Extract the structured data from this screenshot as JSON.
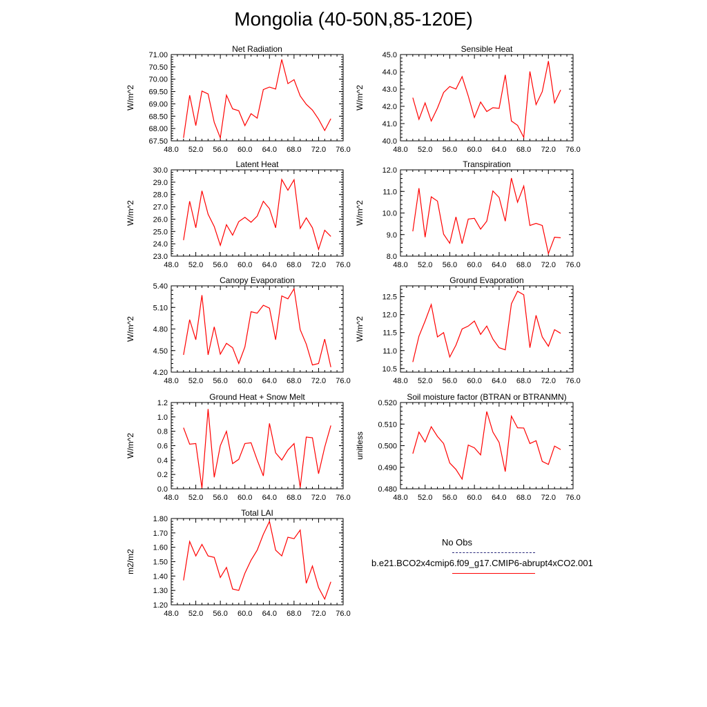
{
  "page": {
    "title": "Mongolia (40-50N,85-120E)"
  },
  "legend": {
    "obs_label": "No Obs",
    "obs_color": "#28287a",
    "model_label": "b.e21.BCO2x4cmip6.f09_g17.CMIP6-abrupt4xCO2.001",
    "model_color": "#ff0000"
  },
  "chart_data": [
    {
      "id": "net-radiation",
      "type": "line",
      "title": "Net Radiation",
      "xlabel": "",
      "ylabel": "W/m^2",
      "xlim": [
        48,
        76
      ],
      "ylim": [
        67.5,
        71.0
      ],
      "xticks": [
        "48.0",
        "52.0",
        "56.0",
        "60.0",
        "64.0",
        "68.0",
        "72.0",
        "76.0"
      ],
      "yticks": [
        "67.50",
        "68.00",
        "68.50",
        "69.00",
        "69.50",
        "70.00",
        "70.50",
        "71.00"
      ],
      "x": [
        50,
        51,
        52,
        53,
        54,
        55,
        56,
        57,
        58,
        59,
        60,
        61,
        62,
        63,
        64,
        65,
        66,
        67,
        68,
        69,
        70,
        71,
        72,
        73,
        74
      ],
      "series": [
        {
          "name": "b.e21.BCO2x4cmip6.f09_g17.CMIP6-abrupt4xCO2.001",
          "values": [
            67.62,
            69.35,
            68.12,
            69.52,
            69.4,
            68.25,
            67.62,
            69.35,
            68.8,
            68.72,
            68.12,
            68.6,
            68.42,
            69.58,
            69.68,
            69.6,
            70.8,
            69.82,
            69.98,
            69.32,
            68.98,
            68.75,
            68.38,
            67.92,
            68.4
          ]
        }
      ]
    },
    {
      "id": "sensible-heat",
      "type": "line",
      "title": "Sensible Heat",
      "xlabel": "",
      "ylabel": "W/m^2",
      "xlim": [
        48,
        76
      ],
      "ylim": [
        40.0,
        45.0
      ],
      "xticks": [
        "48.0",
        "52.0",
        "56.0",
        "60.0",
        "64.0",
        "68.0",
        "72.0",
        "76.0"
      ],
      "yticks": [
        "40.0",
        "41.0",
        "42.0",
        "43.0",
        "44.0",
        "45.0"
      ],
      "x": [
        50,
        51,
        52,
        53,
        54,
        55,
        56,
        57,
        58,
        59,
        60,
        61,
        62,
        63,
        64,
        65,
        66,
        67,
        68,
        69,
        70,
        71,
        72,
        73,
        74
      ],
      "series": [
        {
          "name": "b.e21.BCO2x4cmip6.f09_g17.CMIP6-abrupt4xCO2.001",
          "values": [
            42.5,
            41.25,
            42.2,
            41.15,
            41.9,
            42.8,
            43.15,
            43.0,
            43.72,
            42.6,
            41.35,
            42.25,
            41.7,
            41.92,
            41.88,
            43.82,
            41.15,
            40.9,
            40.2,
            44.02,
            42.1,
            42.85,
            44.62,
            42.2,
            42.95
          ]
        }
      ]
    },
    {
      "id": "latent-heat",
      "type": "line",
      "title": "Latent Heat",
      "xlabel": "",
      "ylabel": "W/m^2",
      "xlim": [
        48,
        76
      ],
      "ylim": [
        23.0,
        30.0
      ],
      "xticks": [
        "48.0",
        "52.0",
        "56.0",
        "60.0",
        "64.0",
        "68.0",
        "72.0",
        "76.0"
      ],
      "yticks": [
        "23.0",
        "24.0",
        "25.0",
        "26.0",
        "27.0",
        "28.0",
        "29.0",
        "30.0"
      ],
      "x": [
        50,
        51,
        52,
        53,
        54,
        55,
        56,
        57,
        58,
        59,
        60,
        61,
        62,
        63,
        64,
        65,
        66,
        67,
        68,
        69,
        70,
        71,
        72,
        73,
        74
      ],
      "series": [
        {
          "name": "b.e21.BCO2x4cmip6.f09_g17.CMIP6-abrupt4xCO2.001",
          "values": [
            24.3,
            27.45,
            25.3,
            28.3,
            26.4,
            25.4,
            23.88,
            25.55,
            24.7,
            25.8,
            26.15,
            25.75,
            26.25,
            27.45,
            26.85,
            25.3,
            29.22,
            28.35,
            29.2,
            25.25,
            26.1,
            25.3,
            23.55,
            25.1,
            24.6
          ]
        }
      ]
    },
    {
      "id": "transpiration",
      "type": "line",
      "title": "Transpiration",
      "xlabel": "",
      "ylabel": "W/m^2",
      "xlim": [
        48,
        76
      ],
      "ylim": [
        8.0,
        12.0
      ],
      "xticks": [
        "48.0",
        "52.0",
        "56.0",
        "60.0",
        "64.0",
        "68.0",
        "72.0",
        "76.0"
      ],
      "yticks": [
        "8.0",
        "9.0",
        "10.0",
        "11.0",
        "12.0"
      ],
      "x": [
        50,
        51,
        52,
        53,
        54,
        55,
        56,
        57,
        58,
        59,
        60,
        61,
        62,
        63,
        64,
        65,
        66,
        67,
        68,
        69,
        70,
        71,
        72,
        73,
        74
      ],
      "series": [
        {
          "name": "b.e21.BCO2x4cmip6.f09_g17.CMIP6-abrupt4xCO2.001",
          "values": [
            9.15,
            11.15,
            8.88,
            10.75,
            10.55,
            9.02,
            8.6,
            9.82,
            8.58,
            9.72,
            9.75,
            9.25,
            9.62,
            11.02,
            10.72,
            9.62,
            11.62,
            10.5,
            11.25,
            9.42,
            9.52,
            9.42,
            8.12,
            8.88,
            8.85
          ]
        }
      ]
    },
    {
      "id": "canopy-evaporation",
      "type": "line",
      "title": "Canopy Evaporation",
      "xlabel": "",
      "ylabel": "W/m^2",
      "xlim": [
        48,
        76
      ],
      "ylim": [
        4.2,
        5.4
      ],
      "xticks": [
        "48.0",
        "52.0",
        "56.0",
        "60.0",
        "64.0",
        "68.0",
        "72.0",
        "76.0"
      ],
      "yticks": [
        "4.20",
        "4.50",
        "4.80",
        "5.10",
        "5.40"
      ],
      "x": [
        50,
        51,
        52,
        53,
        54,
        55,
        56,
        57,
        58,
        59,
        60,
        61,
        62,
        63,
        64,
        65,
        66,
        67,
        68,
        69,
        70,
        71,
        72,
        73,
        74
      ],
      "series": [
        {
          "name": "b.e21.BCO2x4cmip6.f09_g17.CMIP6-abrupt4xCO2.001",
          "values": [
            4.44,
            4.93,
            4.65,
            5.27,
            4.44,
            4.83,
            4.45,
            4.6,
            4.54,
            4.32,
            4.55,
            5.04,
            5.02,
            5.13,
            5.09,
            4.65,
            5.26,
            5.22,
            5.36,
            4.79,
            4.59,
            4.3,
            4.32,
            4.66,
            4.27
          ]
        }
      ]
    },
    {
      "id": "ground-evaporation",
      "type": "line",
      "title": "Ground Evaporation",
      "xlabel": "",
      "ylabel": "W/m^2",
      "xlim": [
        48,
        76
      ],
      "ylim": [
        10.4,
        12.8
      ],
      "xticks": [
        "48.0",
        "52.0",
        "56.0",
        "60.0",
        "64.0",
        "68.0",
        "72.0",
        "76.0"
      ],
      "yticks": [
        "10.5",
        "11.0",
        "11.5",
        "12.0",
        "12.5"
      ],
      "x": [
        50,
        51,
        52,
        53,
        54,
        55,
        56,
        57,
        58,
        59,
        60,
        61,
        62,
        63,
        64,
        65,
        66,
        67,
        68,
        69,
        70,
        71,
        72,
        73,
        74
      ],
      "series": [
        {
          "name": "b.e21.BCO2x4cmip6.f09_g17.CMIP6-abrupt4xCO2.001",
          "values": [
            10.68,
            11.4,
            11.82,
            12.28,
            11.38,
            11.5,
            10.82,
            11.15,
            11.6,
            11.68,
            11.82,
            11.45,
            11.68,
            11.32,
            11.08,
            11.02,
            12.3,
            12.65,
            12.55,
            11.08,
            11.98,
            11.38,
            11.12,
            11.58,
            11.48
          ]
        }
      ]
    },
    {
      "id": "ground-heat-snow-melt",
      "type": "line",
      "title": "Ground Heat + Snow Melt",
      "xlabel": "",
      "ylabel": "W/m^2",
      "xlim": [
        48,
        76
      ],
      "ylim": [
        0.0,
        1.2
      ],
      "xticks": [
        "48.0",
        "52.0",
        "56.0",
        "60.0",
        "64.0",
        "68.0",
        "72.0",
        "76.0"
      ],
      "yticks": [
        "0.0",
        "0.2",
        "0.4",
        "0.6",
        "0.8",
        "1.0",
        "1.2"
      ],
      "x": [
        50,
        51,
        52,
        53,
        54,
        55,
        56,
        57,
        58,
        59,
        60,
        61,
        62,
        63,
        64,
        65,
        66,
        67,
        68,
        69,
        70,
        71,
        72,
        73,
        74
      ],
      "series": [
        {
          "name": "b.e21.BCO2x4cmip6.f09_g17.CMIP6-abrupt4xCO2.001",
          "values": [
            0.85,
            0.62,
            0.63,
            0.01,
            1.11,
            0.16,
            0.6,
            0.8,
            0.35,
            0.41,
            0.63,
            0.64,
            0.4,
            0.18,
            0.91,
            0.5,
            0.4,
            0.54,
            0.63,
            0.02,
            0.72,
            0.71,
            0.21,
            0.58,
            0.88
          ]
        }
      ]
    },
    {
      "id": "soil-moisture-factor",
      "type": "line",
      "title": "Soil moisture factor (BTRAN or BTRANMN)",
      "xlabel": "",
      "ylabel": "unitless",
      "xlim": [
        48,
        76
      ],
      "ylim": [
        0.48,
        0.52
      ],
      "xticks": [
        "48.0",
        "52.0",
        "56.0",
        "60.0",
        "64.0",
        "68.0",
        "72.0",
        "76.0"
      ],
      "yticks": [
        "0.480",
        "0.490",
        "0.500",
        "0.510",
        "0.520"
      ],
      "x": [
        50,
        51,
        52,
        53,
        54,
        55,
        56,
        57,
        58,
        59,
        60,
        61,
        62,
        63,
        64,
        65,
        66,
        67,
        68,
        69,
        70,
        71,
        72,
        73,
        74
      ],
      "series": [
        {
          "name": "b.e21.BCO2x4cmip6.f09_g17.CMIP6-abrupt4xCO2.001",
          "values": [
            0.4963,
            0.5063,
            0.5017,
            0.5088,
            0.5043,
            0.501,
            0.492,
            0.489,
            0.4845,
            0.5003,
            0.499,
            0.4957,
            0.5158,
            0.5063,
            0.5015,
            0.488,
            0.5137,
            0.5083,
            0.5082,
            0.501,
            0.5023,
            0.4927,
            0.4913,
            0.4998,
            0.4982
          ]
        }
      ]
    },
    {
      "id": "total-lai",
      "type": "line",
      "title": "Total LAI",
      "xlabel": "",
      "ylabel": "m2/m2",
      "xlim": [
        48,
        76
      ],
      "ylim": [
        1.2,
        1.8
      ],
      "xticks": [
        "48.0",
        "52.0",
        "56.0",
        "60.0",
        "64.0",
        "68.0",
        "72.0",
        "76.0"
      ],
      "yticks": [
        "1.20",
        "1.30",
        "1.40",
        "1.50",
        "1.60",
        "1.70",
        "1.80"
      ],
      "x": [
        50,
        51,
        52,
        53,
        54,
        55,
        56,
        57,
        58,
        59,
        60,
        61,
        62,
        63,
        64,
        65,
        66,
        67,
        68,
        69,
        70,
        71,
        72,
        73,
        74
      ],
      "series": [
        {
          "name": "b.e21.BCO2x4cmip6.f09_g17.CMIP6-abrupt4xCO2.001",
          "values": [
            1.37,
            1.64,
            1.54,
            1.62,
            1.54,
            1.53,
            1.39,
            1.46,
            1.31,
            1.3,
            1.42,
            1.51,
            1.58,
            1.69,
            1.78,
            1.58,
            1.54,
            1.67,
            1.66,
            1.72,
            1.35,
            1.47,
            1.32,
            1.24,
            1.36
          ]
        }
      ]
    }
  ]
}
